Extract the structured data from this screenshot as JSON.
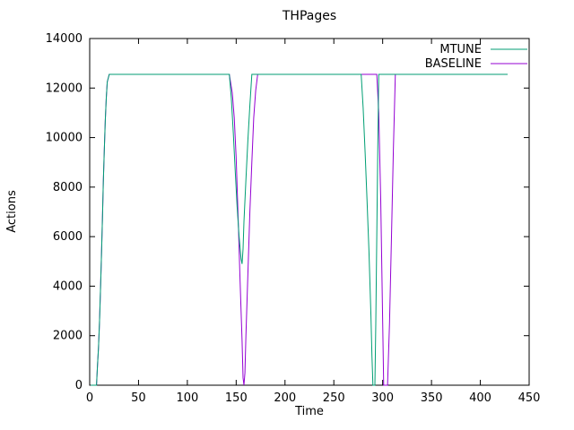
{
  "window": {
    "background": "#ffffff"
  },
  "chart_data": {
    "type": "line",
    "title": "THPages",
    "xlabel": "Time",
    "ylabel": "Actions",
    "xlim": [
      0,
      450
    ],
    "ylim": [
      0,
      14000
    ],
    "x_tick_step": 50,
    "y_tick_step": 2000,
    "grid": false,
    "legend_position": "top-right-inside",
    "border_color": "#000000",
    "text_color": "#000000",
    "plateau_value": 12553,
    "series": [
      {
        "name": "BASELINE",
        "color": "#9400d3",
        "points": [
          [
            1,
            0
          ],
          [
            7,
            0
          ],
          [
            8,
            800
          ],
          [
            9,
            1500
          ],
          [
            10,
            2500
          ],
          [
            11,
            3800
          ],
          [
            12,
            5200
          ],
          [
            13,
            6700
          ],
          [
            14,
            8200
          ],
          [
            15,
            9500
          ],
          [
            16,
            10700
          ],
          [
            17,
            11600
          ],
          [
            18,
            12250
          ],
          [
            20,
            12553
          ],
          [
            143,
            12553
          ],
          [
            146,
            11800
          ],
          [
            148,
            10800
          ],
          [
            150,
            9200
          ],
          [
            152,
            6800
          ],
          [
            154,
            4200
          ],
          [
            156,
            1800
          ],
          [
            157,
            300
          ],
          [
            158,
            0
          ],
          [
            159,
            500
          ],
          [
            160,
            2000
          ],
          [
            162,
            4500
          ],
          [
            164,
            7000
          ],
          [
            166,
            9000
          ],
          [
            168,
            10800
          ],
          [
            170,
            11900
          ],
          [
            172,
            12553
          ],
          [
            294,
            12553
          ],
          [
            296,
            11000
          ],
          [
            298,
            7500
          ],
          [
            300,
            2500
          ],
          [
            301,
            0
          ],
          [
            305,
            0
          ],
          [
            307,
            2500
          ],
          [
            309,
            6000
          ],
          [
            311,
            9500
          ],
          [
            313,
            12553
          ],
          [
            428,
            12553
          ]
        ]
      },
      {
        "name": "MTUNE",
        "color": "#009e73",
        "points": [
          [
            1,
            0
          ],
          [
            7,
            0
          ],
          [
            8,
            800
          ],
          [
            9,
            1500
          ],
          [
            10,
            2500
          ],
          [
            11,
            3800
          ],
          [
            12,
            5200
          ],
          [
            13,
            6700
          ],
          [
            14,
            8200
          ],
          [
            15,
            9500
          ],
          [
            16,
            10700
          ],
          [
            17,
            11600
          ],
          [
            18,
            12250
          ],
          [
            20,
            12553
          ],
          [
            143,
            12553
          ],
          [
            145,
            11600
          ],
          [
            147,
            10200
          ],
          [
            149,
            8700
          ],
          [
            151,
            7200
          ],
          [
            153,
            6000
          ],
          [
            155,
            5100
          ],
          [
            156,
            4900
          ],
          [
            157,
            5500
          ],
          [
            158,
            6600
          ],
          [
            160,
            8300
          ],
          [
            162,
            9900
          ],
          [
            164,
            11300
          ],
          [
            166,
            12553
          ],
          [
            278,
            12553
          ],
          [
            280,
            11200
          ],
          [
            282,
            9400
          ],
          [
            284,
            7500
          ],
          [
            286,
            5400
          ],
          [
            288,
            2800
          ],
          [
            289,
            1200
          ],
          [
            290,
            0
          ],
          [
            292,
            0
          ],
          [
            293,
            2500
          ],
          [
            294,
            6000
          ],
          [
            295,
            9500
          ],
          [
            296,
            12553
          ],
          [
            428,
            12553
          ]
        ]
      }
    ]
  }
}
